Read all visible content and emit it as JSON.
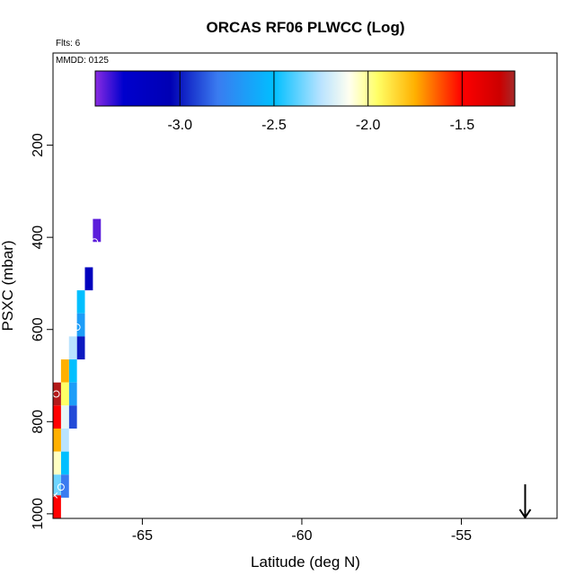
{
  "chart_data": {
    "type": "heatmap",
    "title": "ORCAS RF06 PLWCC (Log)",
    "flights_label": "Flts: 6",
    "date_label": "MMDD: 0125",
    "xlabel": "Latitude (deg N)",
    "ylabel": "PSXC (mbar)",
    "xlim": [
      -67.8,
      -52.0
    ],
    "ylim": [
      1010,
      0
    ],
    "x_ticks": [
      -65,
      -60,
      -55
    ],
    "x_tick_labels": [
      "-65",
      "-60",
      "-55"
    ],
    "y_ticks": [
      200,
      400,
      600,
      800,
      1000
    ],
    "y_tick_labels": [
      "200",
      "400",
      "600",
      "800",
      "1000"
    ],
    "colorbar": {
      "range": [
        -3.45,
        -1.22
      ],
      "ticks": [
        -3.0,
        -2.5,
        -2.0,
        -1.5
      ],
      "tick_labels": [
        "-3.0",
        "-2.5",
        "-2.0",
        "-1.5"
      ],
      "stops": [
        {
          "v": -3.45,
          "color": "#8a2be2"
        },
        {
          "v": -3.3,
          "color": "#0000cd"
        },
        {
          "v": -3.05,
          "color": "#0000b4"
        },
        {
          "v": -2.8,
          "color": "#3a7bf0"
        },
        {
          "v": -2.5,
          "color": "#00bfff"
        },
        {
          "v": -2.25,
          "color": "#b9e3ff"
        },
        {
          "v": -2.1,
          "color": "#fffff0"
        },
        {
          "v": -1.95,
          "color": "#ffff66"
        },
        {
          "v": -1.75,
          "color": "#ffb000"
        },
        {
          "v": -1.5,
          "color": "#ff0000"
        },
        {
          "v": -1.3,
          "color": "#cc0000"
        },
        {
          "v": -1.22,
          "color": "#a52a2a"
        }
      ]
    },
    "cell_width_lat": 0.25,
    "cell_height_mbar": 50,
    "cells": [
      {
        "lat": -66.55,
        "p": 360,
        "v": -3.4
      },
      {
        "lat": -66.8,
        "p": 465,
        "v": -3.15
      },
      {
        "lat": -67.05,
        "p": 515,
        "v": -2.5
      },
      {
        "lat": -67.05,
        "p": 565,
        "v": -2.65
      },
      {
        "lat": -67.05,
        "p": 615,
        "v": -3.0
      },
      {
        "lat": -67.3,
        "p": 615,
        "v": -2.25
      },
      {
        "lat": -67.3,
        "p": 665,
        "v": -2.5
      },
      {
        "lat": -67.3,
        "p": 715,
        "v": -2.65
      },
      {
        "lat": -67.3,
        "p": 765,
        "v": -2.9
      },
      {
        "lat": -67.55,
        "p": 665,
        "v": -1.75
      },
      {
        "lat": -67.55,
        "p": 715,
        "v": -1.95
      },
      {
        "lat": -67.55,
        "p": 765,
        "v": -2.15
      },
      {
        "lat": -67.55,
        "p": 815,
        "v": -2.25
      },
      {
        "lat": -67.55,
        "p": 865,
        "v": -2.5
      },
      {
        "lat": -67.55,
        "p": 915,
        "v": -2.8
      },
      {
        "lat": -67.8,
        "p": 715,
        "v": -1.25
      },
      {
        "lat": -67.8,
        "p": 765,
        "v": -1.5
      },
      {
        "lat": -67.8,
        "p": 815,
        "v": -1.75
      },
      {
        "lat": -67.8,
        "p": 865,
        "v": -2.05
      },
      {
        "lat": -67.8,
        "p": 915,
        "v": -2.35
      },
      {
        "lat": -67.8,
        "p": 960,
        "v": -1.5
      }
    ],
    "markers": [
      {
        "lat": -66.5,
        "p": 410,
        "symbol": "o"
      },
      {
        "lat": -67.05,
        "p": 595,
        "symbol": "o"
      },
      {
        "lat": -67.7,
        "p": 740,
        "symbol": "o"
      },
      {
        "lat": -67.55,
        "p": 942,
        "symbol": "o"
      },
      {
        "lat": -67.75,
        "p": 960,
        "symbol": "x"
      }
    ],
    "arrow": {
      "lat": -53.0,
      "p_from": 975,
      "p_to": 1010
    }
  }
}
